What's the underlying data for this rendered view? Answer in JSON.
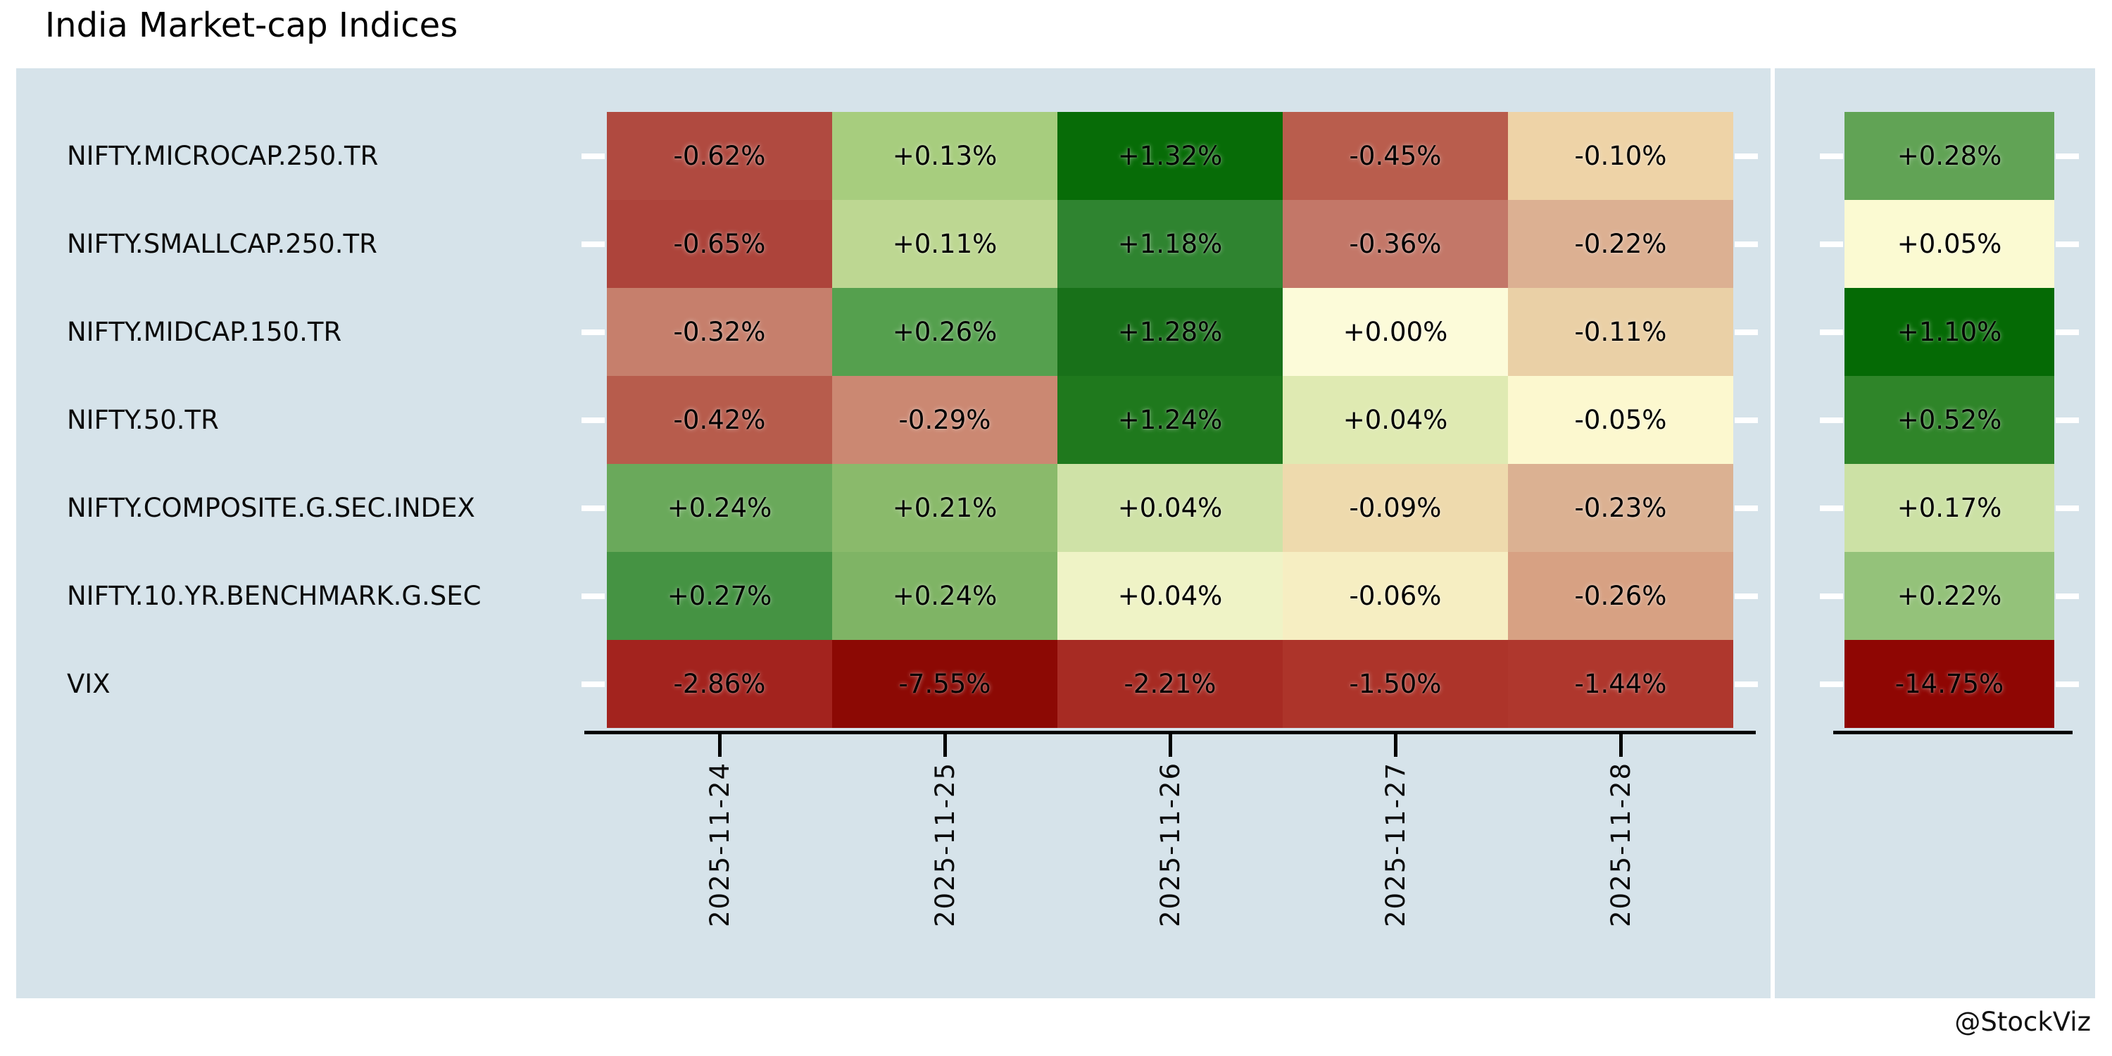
{
  "title": "India Market-cap Indices",
  "attribution": "@StockViz",
  "styles": {
    "panel_bg": "#d6e3ea",
    "axis_color": "#000000",
    "row_tick_color": "#ffffff",
    "cell_text_color": "#000000",
    "strongest_green": "#056a05",
    "strongest_red": "#8c0904"
  },
  "chart_data": {
    "type": "heatmap",
    "title": "India Market-cap Indices",
    "value_format": "signed percent, two decimals",
    "legend_position": "none",
    "grid": "off",
    "columns": [
      "2025-11-24",
      "2025-11-25",
      "2025-11-26",
      "2025-11-27",
      "2025-11-28"
    ],
    "summary_column_note": "unlabeled right-hand column (period total)",
    "rows": [
      {
        "label": "NIFTY.MICROCAP.250.TR",
        "values": [
          -0.62,
          0.13,
          1.32,
          -0.45,
          -0.1
        ],
        "display": [
          "-0.62%",
          "+0.13%",
          "+1.32%",
          "-0.45%",
          "-0.10%"
        ],
        "colors": [
          "#b04a40",
          "#a7cd7e",
          "#076c07",
          "#b95d4d",
          "#eed3a7"
        ],
        "summary_value": 0.28,
        "summary_display": "+0.28%",
        "summary_color": "#61a355"
      },
      {
        "label": "NIFTY.SMALLCAP.250.TR",
        "values": [
          -0.65,
          0.11,
          1.18,
          -0.36,
          -0.22
        ],
        "display": [
          "-0.65%",
          "+0.11%",
          "+1.18%",
          "-0.36%",
          "-0.22%"
        ],
        "colors": [
          "#ad443b",
          "#bdd792",
          "#2f8430",
          "#c37768",
          "#dcb092"
        ],
        "summary_value": 0.05,
        "summary_display": "+0.05%",
        "summary_color": "#fbfad2"
      },
      {
        "label": "NIFTY.MIDCAP.150.TR",
        "values": [
          -0.32,
          0.26,
          1.28,
          0.0,
          -0.11
        ],
        "display": [
          "-0.32%",
          "+0.26%",
          "+1.28%",
          "+0.00%",
          "-0.11%"
        ],
        "colors": [
          "#c67f6c",
          "#55a04e",
          "#187119",
          "#fcfbd9",
          "#ead0a6"
        ],
        "summary_value": 1.1,
        "summary_display": "+1.10%",
        "summary_color": "#056a05"
      },
      {
        "label": "NIFTY.50.TR",
        "values": [
          -0.42,
          -0.29,
          1.24,
          0.04,
          -0.05
        ],
        "display": [
          "-0.42%",
          "-0.29%",
          "+1.24%",
          "+0.04%",
          "-0.05%"
        ],
        "colors": [
          "#b75c4c",
          "#cb8872",
          "#1f791d",
          "#dfeab2",
          "#fcf8cf"
        ],
        "summary_value": 0.52,
        "summary_display": "+0.52%",
        "summary_color": "#2f8529"
      },
      {
        "label": "NIFTY.COMPOSITE.G.SEC.INDEX",
        "values": [
          0.24,
          0.21,
          0.04,
          -0.09,
          -0.23
        ],
        "display": [
          "+0.24%",
          "+0.21%",
          "+0.04%",
          "-0.09%",
          "-0.23%"
        ],
        "colors": [
          "#6aa95b",
          "#8aba6b",
          "#cfe2a7",
          "#eedaad",
          "#dbb192"
        ],
        "summary_value": 0.17,
        "summary_display": "+0.17%",
        "summary_color": "#cce1a5"
      },
      {
        "label": "NIFTY.10.YR.BENCHMARK.G.SEC",
        "values": [
          0.27,
          0.24,
          0.04,
          -0.06,
          -0.26
        ],
        "display": [
          "+0.27%",
          "+0.24%",
          "+0.04%",
          "-0.06%",
          "-0.26%"
        ],
        "colors": [
          "#459343",
          "#7fb465",
          "#eff3c6",
          "#f6eec2",
          "#d7a183"
        ],
        "summary_value": 0.22,
        "summary_display": "+0.22%",
        "summary_color": "#94c27a"
      },
      {
        "label": "VIX",
        "values": [
          -2.86,
          -7.55,
          -2.21,
          -1.5,
          -1.44
        ],
        "display": [
          "-2.86%",
          "-7.55%",
          "-2.21%",
          "-1.50%",
          "-1.44%"
        ],
        "colors": [
          "#a3231e",
          "#8c0904",
          "#a72b23",
          "#ad342a",
          "#af372d"
        ],
        "summary_value": -14.75,
        "summary_display": "-14.75%",
        "summary_color": "#8f0603"
      }
    ]
  }
}
